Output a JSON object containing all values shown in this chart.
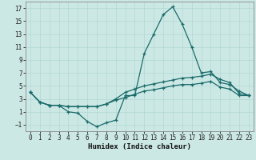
{
  "xlabel": "Humidex (Indice chaleur)",
  "background_color": "#cce8e4",
  "line_color": "#1a6b6b",
  "grid_color": "#b0d8d4",
  "x_values": [
    0,
    1,
    2,
    3,
    4,
    5,
    6,
    7,
    8,
    9,
    10,
    11,
    12,
    13,
    14,
    15,
    16,
    17,
    18,
    19,
    20,
    21,
    22,
    23
  ],
  "line_max": [
    4.0,
    2.5,
    2.0,
    2.0,
    1.0,
    0.8,
    -0.5,
    -1.3,
    -0.7,
    -0.3,
    3.5,
    3.5,
    10.0,
    13.0,
    16.0,
    17.2,
    14.5,
    11.0,
    7.0,
    7.2,
    5.5,
    5.2,
    4.2,
    3.5
  ],
  "line_mean": [
    4.0,
    2.5,
    2.0,
    2.0,
    1.8,
    1.8,
    1.8,
    1.8,
    2.2,
    3.0,
    4.0,
    4.5,
    5.0,
    5.3,
    5.6,
    5.9,
    6.2,
    6.3,
    6.5,
    6.8,
    6.0,
    5.5,
    3.8,
    3.5
  ],
  "line_min": [
    4.0,
    2.5,
    2.0,
    2.0,
    1.8,
    1.8,
    1.8,
    1.8,
    2.2,
    2.8,
    3.2,
    3.7,
    4.2,
    4.4,
    4.7,
    5.0,
    5.2,
    5.2,
    5.4,
    5.7,
    4.8,
    4.5,
    3.5,
    3.5
  ],
  "ylim": [
    -2,
    18
  ],
  "xlim": [
    -0.5,
    23.5
  ],
  "yticks": [
    -1,
    1,
    3,
    5,
    7,
    9,
    11,
    13,
    15,
    17
  ],
  "xticks": [
    0,
    1,
    2,
    3,
    4,
    5,
    6,
    7,
    8,
    9,
    10,
    11,
    12,
    13,
    14,
    15,
    16,
    17,
    18,
    19,
    20,
    21,
    22,
    23
  ],
  "tick_fontsize": 5.5,
  "xlabel_fontsize": 6.5
}
